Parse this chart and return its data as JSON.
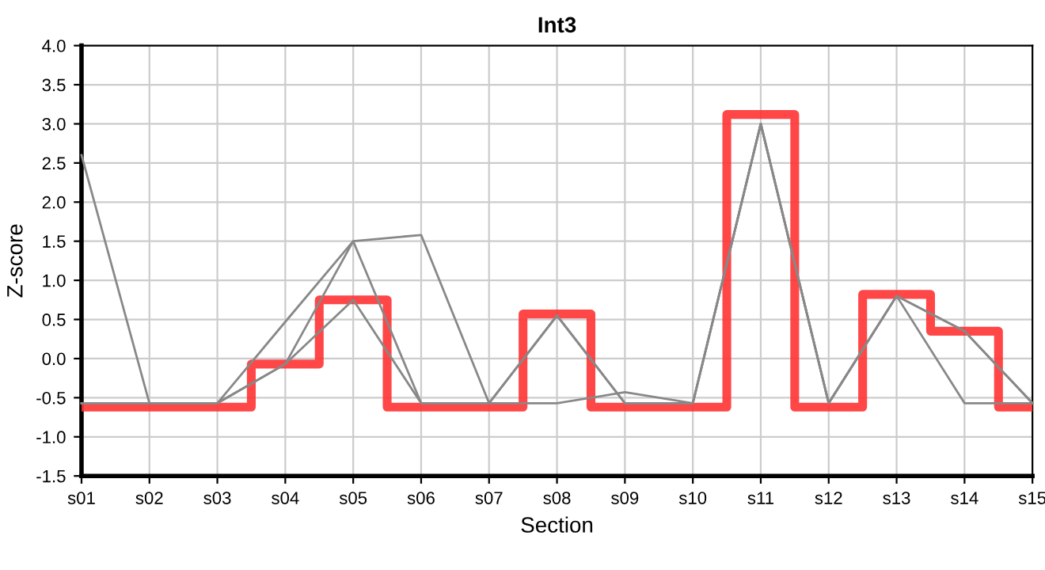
{
  "chart_data": {
    "type": "line",
    "title": "Int3",
    "xlabel": "Section",
    "ylabel": "Z-score",
    "categories": [
      "s01",
      "s02",
      "s03",
      "s04",
      "s05",
      "s06",
      "s07",
      "s08",
      "s09",
      "s10",
      "s11",
      "s12",
      "s13",
      "s14",
      "s15"
    ],
    "series": [
      {
        "color": "#888888",
        "values": [
          2.6,
          -0.57,
          -0.57,
          0.47,
          1.5,
          1.58,
          -0.57,
          0.55,
          -0.57,
          -0.57,
          3.0,
          -0.57,
          0.8,
          0.35,
          -0.57
        ]
      },
      {
        "color": "#888888",
        "values": [
          -0.57,
          -0.57,
          -0.57,
          -0.07,
          1.5,
          -0.57,
          -0.57,
          0.55,
          -0.57,
          -0.57,
          3.0,
          -0.57,
          0.8,
          -0.57,
          -0.57
        ]
      },
      {
        "color": "#888888",
        "values": [
          -0.57,
          -0.57,
          -0.57,
          -0.07,
          0.75,
          -0.57,
          -0.57,
          -0.57,
          -0.43,
          -0.57,
          3.0,
          -0.57,
          0.8,
          0.35,
          -0.57
        ]
      },
      {
        "type": "step",
        "color": "#ff3333",
        "values": [
          -0.62,
          -0.62,
          -0.62,
          -0.07,
          0.75,
          -0.62,
          -0.62,
          0.57,
          -0.62,
          -0.62,
          3.12,
          -0.62,
          0.82,
          0.35,
          -0.62
        ]
      }
    ],
    "ylim": [
      -1.5,
      4.0
    ],
    "yticks": [
      {
        "value": -1.5,
        "label": "-1.5"
      },
      {
        "value": -1.0,
        "label": "-1.0"
      },
      {
        "value": -0.5,
        "label": "-0.5"
      },
      {
        "value": 0,
        "label": "0.0"
      },
      {
        "value": 0.5,
        "label": "0.5"
      },
      {
        "value": 1.0,
        "label": "1.0"
      },
      {
        "value": 1.5,
        "label": "1.5"
      },
      {
        "value": 2.0,
        "label": "2.0"
      },
      {
        "value": 2.5,
        "label": "2.5"
      },
      {
        "value": 3.0,
        "label": "3.0"
      },
      {
        "value": 3.5,
        "label": "3.5"
      },
      {
        "value": 4.0,
        "label": "4.0"
      }
    ],
    "grid": true
  }
}
